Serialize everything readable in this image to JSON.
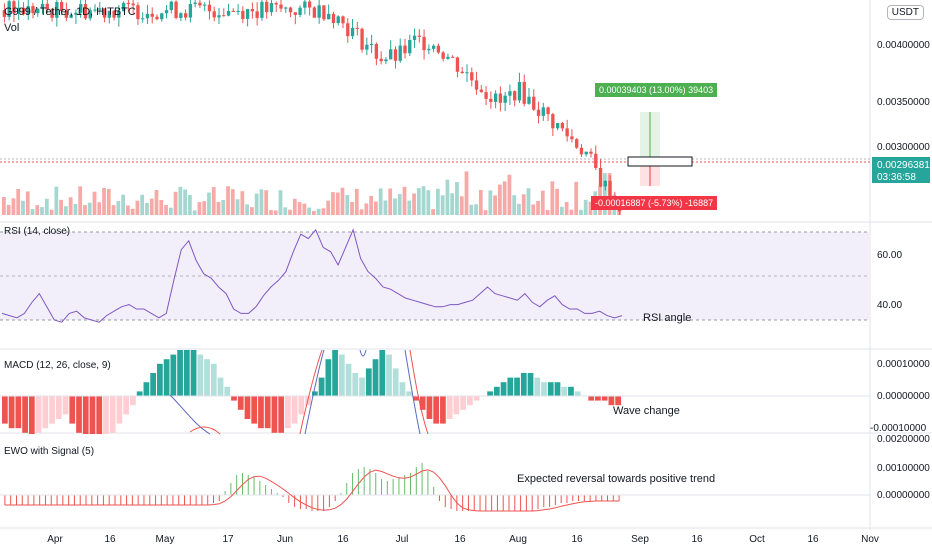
{
  "header": {
    "symbol": "G999 / Tether, 1D, HITBTC",
    "volume_label": "Vol",
    "currency": "USDT"
  },
  "price_axis": {
    "ticks": [
      "0.00400000",
      "0.00350000",
      "0.00300000"
    ],
    "last_price": "0.00296381",
    "countdown": "03:36:58"
  },
  "measure": {
    "up_label": "0.00039403 (13.00%) 39403",
    "down_label": "-0.00016887 (-5.73%) -16887"
  },
  "rsi": {
    "label": "RSI (14, close)",
    "ticks": [
      "60.00",
      "40.00"
    ],
    "annotation": "RSI angle"
  },
  "macd": {
    "label": "MACD (12, 26, close, 9)",
    "ticks": [
      "0.00010000",
      "0.00000000",
      "-0.00010000"
    ],
    "annotation": "Wave change"
  },
  "ewo": {
    "label": "EWO with Signal (5)",
    "ticks": [
      "0.00200000",
      "0.00100000",
      "0.00000000"
    ],
    "annotation": "Expected reversal towards positive trend"
  },
  "time_axis": [
    "Apr",
    "16",
    "May",
    "17",
    "Jun",
    "16",
    "Jul",
    "16",
    "Aug",
    "16",
    "Sep",
    "16",
    "Oct",
    "16",
    "Nov"
  ],
  "colors": {
    "up": "#26a69a",
    "down": "#ef5350",
    "rsi_line": "#7e57c2",
    "rsi_band": "#f3effa",
    "ewo_pos": "#66bb6a",
    "ewo_neg": "#ef5350",
    "measure_up": "#4caf50",
    "measure_down": "#f23645"
  },
  "chart_data": [
    {
      "type": "candlestick",
      "title": "G999 / Tether, 1D, HITBTC",
      "ylim": [
        0.0029,
        0.0042
      ],
      "close_path": [
        0.0042,
        0.0042,
        0.0042,
        0.0042,
        0.0042,
        0.0042,
        0.0042,
        0.0042,
        0.0042,
        0.0042,
        0.0042,
        0.0042,
        0.0042,
        0.0042,
        0.0042,
        0.0042,
        0.0042,
        0.0042,
        0.0042,
        0.0042,
        0.0041,
        0.004,
        0.0039,
        0.0039,
        0.004,
        0.004,
        0.0039,
        0.0038,
        0.0037,
        0.0036,
        0.0037,
        0.0036,
        0.0035,
        0.0034,
        0.0033,
        0.0031,
        0.00296
      ]
    },
    {
      "type": "line",
      "title": "RSI (14, close)",
      "ylim": [
        25,
        75
      ],
      "values": [
        33,
        32,
        31,
        33,
        38,
        42,
        36,
        30,
        29,
        33,
        34,
        31,
        30,
        29,
        32,
        34,
        36,
        37,
        35,
        35,
        33,
        31,
        33,
        48,
        62,
        66,
        57,
        51,
        49,
        45,
        42,
        35,
        33,
        33,
        36,
        41,
        45,
        48,
        52,
        61,
        69,
        67,
        71,
        63,
        61,
        55,
        63,
        71,
        58,
        52,
        49,
        45,
        44,
        42,
        40,
        39,
        38,
        37,
        36,
        36,
        37,
        37,
        38,
        39,
        42,
        45,
        42,
        41,
        40,
        39,
        42,
        38,
        36,
        39,
        41,
        37,
        35,
        35,
        33,
        33,
        34,
        32,
        31,
        32
      ]
    },
    {
      "type": "bar",
      "title": "MACD (12, 26, close, 9)",
      "ylim": [
        -0.0001,
        0.0001
      ],
      "values": [
        -6,
        -7,
        -7,
        -8,
        -9,
        -8,
        -7,
        -6,
        -5,
        -4,
        -6,
        -8,
        -9,
        -9,
        -10,
        -9,
        -8,
        -6,
        -4,
        -2,
        1,
        3,
        5,
        7,
        8,
        9,
        10,
        10,
        10,
        9,
        8,
        7,
        4,
        2,
        -1,
        -3,
        -5,
        -6,
        -7,
        -7,
        -8,
        -8,
        -7,
        -6,
        -4,
        -2,
        1,
        4,
        8,
        10,
        9,
        7,
        5,
        4,
        6,
        8,
        10,
        9,
        6,
        3,
        1,
        -1,
        -3,
        -5,
        -6,
        -6,
        -5,
        -4,
        -3,
        -2,
        -1,
        0,
        1,
        2,
        3,
        4,
        4,
        5,
        5,
        4,
        3,
        3,
        3,
        2,
        2,
        1,
        0,
        -1,
        -1,
        -1,
        -2,
        -2
      ]
    },
    {
      "type": "bar",
      "title": "EWO with Signal (5)",
      "ylim": [
        -0.0008,
        0.002
      ],
      "values": [
        -5,
        -5,
        -5,
        -5,
        -5,
        -5,
        -5,
        -5,
        -5,
        -5,
        -5,
        -5,
        -5,
        -5,
        -5,
        -5,
        -5,
        -5,
        -5,
        -5,
        -5,
        -5,
        -5,
        -5,
        -5,
        -5,
        -5,
        -5,
        -5,
        -5,
        -5,
        -5,
        -5,
        -5,
        -5,
        -5,
        -4,
        -3,
        2,
        6,
        10,
        11,
        10,
        9,
        7,
        5,
        3,
        1,
        -1,
        -4,
        -6,
        -7,
        -7,
        -8,
        -8,
        -8,
        -6,
        -3,
        1,
        6,
        11,
        13,
        14,
        13,
        11,
        8,
        7,
        8,
        9,
        10,
        11,
        14,
        16,
        12,
        4,
        -3,
        -6,
        -7,
        -8,
        -8,
        -8,
        -8,
        -8,
        -8,
        -8,
        -8,
        -8,
        -8,
        -8,
        -8,
        -8,
        -8,
        -7,
        -6,
        -6,
        -5,
        -4,
        -4,
        -3,
        -3,
        -3,
        -3,
        -3,
        -3,
        -3,
        -3,
        -3
      ]
    }
  ]
}
